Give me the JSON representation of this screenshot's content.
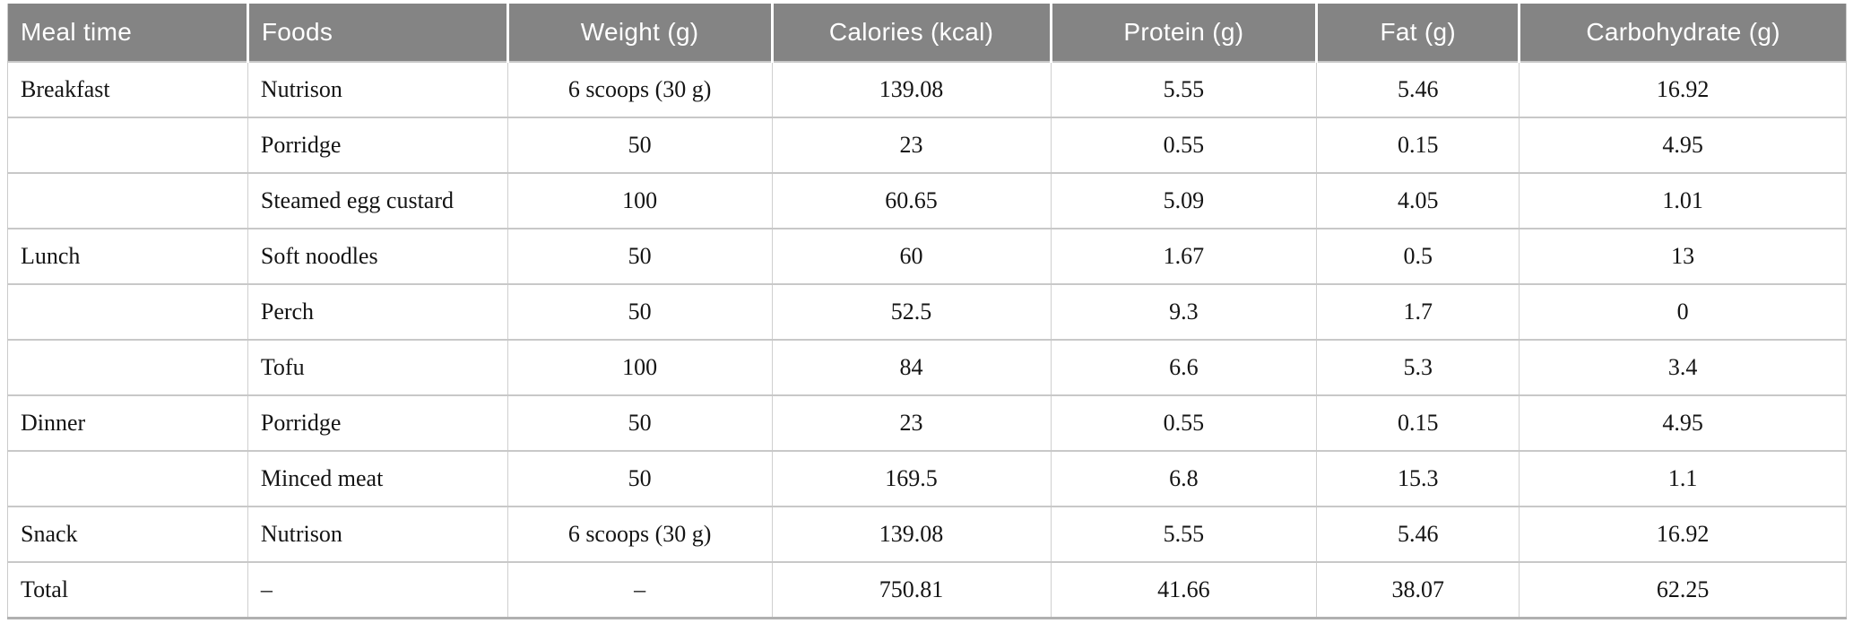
{
  "table": {
    "columns": [
      {
        "label": "Meal time",
        "align": "left"
      },
      {
        "label": "Foods",
        "align": "left"
      },
      {
        "label": "Weight (g)",
        "align": "center"
      },
      {
        "label": "Calories (kcal)",
        "align": "center"
      },
      {
        "label": "Protein (g)",
        "align": "center"
      },
      {
        "label": "Fat (g)",
        "align": "center"
      },
      {
        "label": "Carbohydrate (g)",
        "align": "center"
      }
    ],
    "rows": [
      [
        "Breakfast",
        "Nutrison",
        "6 scoops (30 g)",
        "139.08",
        "5.55",
        "5.46",
        "16.92"
      ],
      [
        "",
        "Porridge",
        "50",
        "23",
        "0.55",
        "0.15",
        "4.95"
      ],
      [
        "",
        "Steamed egg custard",
        "100",
        "60.65",
        "5.09",
        "4.05",
        "1.01"
      ],
      [
        "Lunch",
        "Soft noodles",
        "50",
        "60",
        "1.67",
        "0.5",
        "13"
      ],
      [
        "",
        "Perch",
        "50",
        "52.5",
        "9.3",
        "1.7",
        "0"
      ],
      [
        "",
        "Tofu",
        "100",
        "84",
        "6.6",
        "5.3",
        "3.4"
      ],
      [
        "Dinner",
        "Porridge",
        "50",
        "23",
        "0.55",
        "0.15",
        "4.95"
      ],
      [
        "",
        "Minced meat",
        "50",
        "169.5",
        "6.8",
        "15.3",
        "1.1"
      ],
      [
        "Snack",
        "Nutrison",
        "6 scoops (30 g)",
        "139.08",
        "5.55",
        "5.46",
        "16.92"
      ],
      [
        "Total",
        "–",
        "–",
        "750.81",
        "41.66",
        "38.07",
        "62.25"
      ]
    ]
  },
  "chart_data": {
    "type": "table",
    "title": "",
    "columns": [
      "Meal time",
      "Foods",
      "Weight (g)",
      "Calories (kcal)",
      "Protein (g)",
      "Fat (g)",
      "Carbohydrate (g)"
    ],
    "rows": [
      [
        "Breakfast",
        "Nutrison",
        "6 scoops (30 g)",
        139.08,
        5.55,
        5.46,
        16.92
      ],
      [
        "",
        "Porridge",
        "50",
        23,
        0.55,
        0.15,
        4.95
      ],
      [
        "",
        "Steamed egg custard",
        "100",
        60.65,
        5.09,
        4.05,
        1.01
      ],
      [
        "Lunch",
        "Soft noodles",
        "50",
        60,
        1.67,
        0.5,
        13
      ],
      [
        "",
        "Perch",
        "50",
        52.5,
        9.3,
        1.7,
        0
      ],
      [
        "",
        "Tofu",
        "100",
        84,
        6.6,
        5.3,
        3.4
      ],
      [
        "Dinner",
        "Porridge",
        "50",
        23,
        0.55,
        0.15,
        4.95
      ],
      [
        "",
        "Minced meat",
        "50",
        169.5,
        6.8,
        15.3,
        1.1
      ],
      [
        "Snack",
        "Nutrison",
        "6 scoops (30 g)",
        139.08,
        5.55,
        5.46,
        16.92
      ],
      [
        "Total",
        "–",
        "–",
        750.81,
        41.66,
        38.07,
        62.25
      ]
    ]
  },
  "colors": {
    "header_bg": "#848484",
    "header_text": "#ffffff",
    "body_text": "#141414",
    "grid_line": "#c8c8c8",
    "bottom_border": "#b0b0b0"
  }
}
